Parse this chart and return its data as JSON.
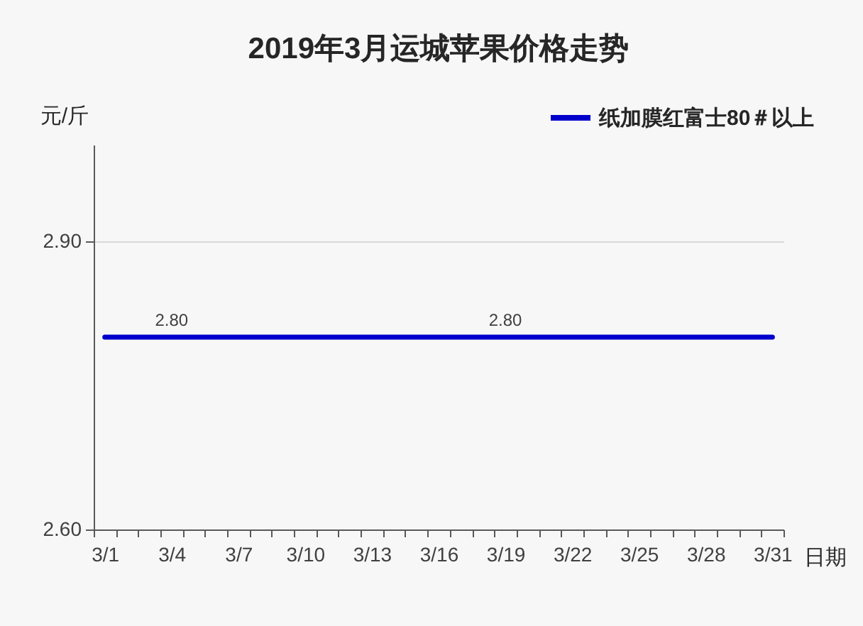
{
  "chart_data": {
    "type": "line",
    "title": "2019年3月运城苹果价格走势",
    "xlabel": "日期",
    "ylabel": "元/斤",
    "categories": [
      "3/1",
      null,
      null,
      "3/4",
      null,
      null,
      "3/7",
      null,
      null,
      "3/10",
      null,
      null,
      "3/13",
      null,
      null,
      "3/16",
      null,
      null,
      "3/19",
      null,
      null,
      "3/22",
      null,
      null,
      "3/25",
      null,
      null,
      "3/28",
      null,
      null,
      "3/31"
    ],
    "series": [
      {
        "name": "纸加膜红富士80＃以上",
        "color": "#0000cc",
        "values": [
          2.8,
          2.8,
          2.8,
          2.8,
          2.8,
          2.8,
          2.8,
          2.8,
          2.8,
          2.8,
          2.8,
          2.8,
          2.8,
          2.8,
          2.8,
          2.8,
          2.8,
          2.8,
          2.8,
          2.8,
          2.8,
          2.8,
          2.8,
          2.8,
          2.8,
          2.8,
          2.8,
          2.8,
          2.8,
          2.8,
          2.8
        ],
        "value_labels": [
          null,
          null,
          null,
          "2.80",
          null,
          null,
          null,
          null,
          null,
          null,
          null,
          null,
          null,
          null,
          null,
          null,
          null,
          null,
          "2.80",
          null,
          null,
          null,
          null,
          null,
          null,
          null,
          null,
          null,
          null,
          null,
          null
        ]
      }
    ],
    "ylim": [
      2.6,
      3.0
    ],
    "yticks": [
      {
        "value": 2.6,
        "label": "2.60"
      },
      {
        "value": 2.9,
        "label": "2.90"
      }
    ],
    "grid": "y",
    "legend": "top right"
  }
}
